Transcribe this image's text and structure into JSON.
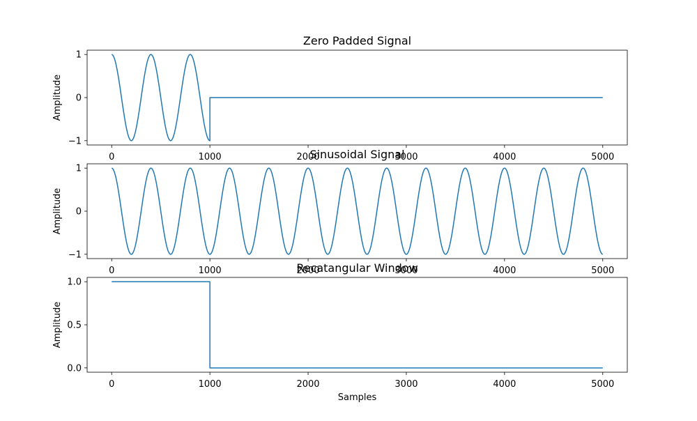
{
  "chart_data": [
    {
      "type": "line",
      "title": "Zero Padded Signal",
      "xlabel": "",
      "ylabel": "Amplitude",
      "xlim": [
        -250,
        5250
      ],
      "ylim": [
        -1.1,
        1.1
      ],
      "xticks": [
        0,
        1000,
        2000,
        3000,
        4000,
        5000
      ],
      "xtick_labels": [
        "0",
        "1000",
        "2000",
        "3000",
        "4000",
        "5000"
      ],
      "yticks": [
        -1,
        0,
        1
      ],
      "ytick_labels": [
        "−1",
        "0",
        "1"
      ],
      "grid": false,
      "series": [
        {
          "signal": "cosine_then_zero",
          "period": 400,
          "amplitude": 1,
          "cutoff": 1000,
          "x_range": [
            0,
            5000
          ],
          "color": "#1f77b4"
        }
      ]
    },
    {
      "type": "line",
      "title": "Sinusoidal Signal",
      "xlabel": "",
      "ylabel": "Amplitude",
      "xlim": [
        -250,
        5250
      ],
      "ylim": [
        -1.1,
        1.1
      ],
      "xticks": [
        0,
        1000,
        2000,
        3000,
        4000,
        5000
      ],
      "xtick_labels": [
        "0",
        "1000",
        "2000",
        "3000",
        "4000",
        "5000"
      ],
      "yticks": [
        -1,
        0,
        1
      ],
      "ytick_labels": [
        "−1",
        "0",
        "1"
      ],
      "grid": false,
      "series": [
        {
          "signal": "cosine",
          "period": 400,
          "amplitude": 1,
          "x_range": [
            0,
            5000
          ],
          "color": "#1f77b4"
        }
      ]
    },
    {
      "type": "line",
      "title": "Recatangular Window",
      "xlabel": "Samples",
      "ylabel": "Amplitude",
      "xlim": [
        -250,
        5250
      ],
      "ylim": [
        -0.05,
        1.05
      ],
      "xticks": [
        0,
        1000,
        2000,
        3000,
        4000,
        5000
      ],
      "xtick_labels": [
        "0",
        "1000",
        "2000",
        "3000",
        "4000",
        "5000"
      ],
      "yticks": [
        0,
        0.5,
        1
      ],
      "ytick_labels": [
        "0.0",
        "0.5",
        "1.0"
      ],
      "grid": false,
      "series": [
        {
          "signal": "step",
          "x": [
            0,
            1000,
            1000,
            5000
          ],
          "y": [
            1,
            1,
            0,
            0
          ],
          "color": "#1f77b4"
        }
      ]
    }
  ]
}
